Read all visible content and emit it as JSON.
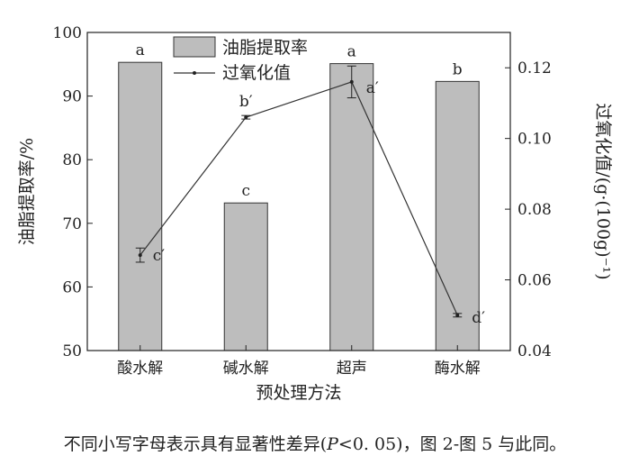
{
  "chart_data": {
    "type": "bar+line",
    "categories": [
      "酸水解",
      "碱水解",
      "超声",
      "酶水解"
    ],
    "xlabel": "预处理方法",
    "ylabel_left": "油脂提取率/%",
    "ylabel_right": "过氧化值/(g·(100g)⁻¹)",
    "ylim_left": [
      50,
      100
    ],
    "yticks_left": [
      "50",
      "60",
      "70",
      "80",
      "90",
      "100"
    ],
    "ylim_right": [
      0.04,
      0.13
    ],
    "yticks_right": [
      "0.04",
      "0.06",
      "0.08",
      "0.10",
      "0.12"
    ],
    "series": [
      {
        "name": "油脂提取率",
        "kind": "bar",
        "axis": "left",
        "color": "#bdbdbd",
        "values": [
          95.3,
          73.2,
          95.1,
          92.3
        ],
        "labels": [
          "a",
          "c",
          "a",
          "b"
        ]
      },
      {
        "name": "过氧化值",
        "kind": "line",
        "axis": "right",
        "color": "#333333",
        "values": [
          0.067,
          0.106,
          0.116,
          0.05
        ],
        "errors": [
          0.002,
          0.0005,
          0.0045,
          0.0005
        ],
        "labels": [
          "c′",
          "b′",
          "a′",
          "d′"
        ]
      }
    ],
    "legend_position": "top-center"
  },
  "caption": {
    "before": "不同小写字母表示具有显著性差异(",
    "italic": "P",
    "after": "<0. 05)，图 2-图 5 与此同。"
  }
}
